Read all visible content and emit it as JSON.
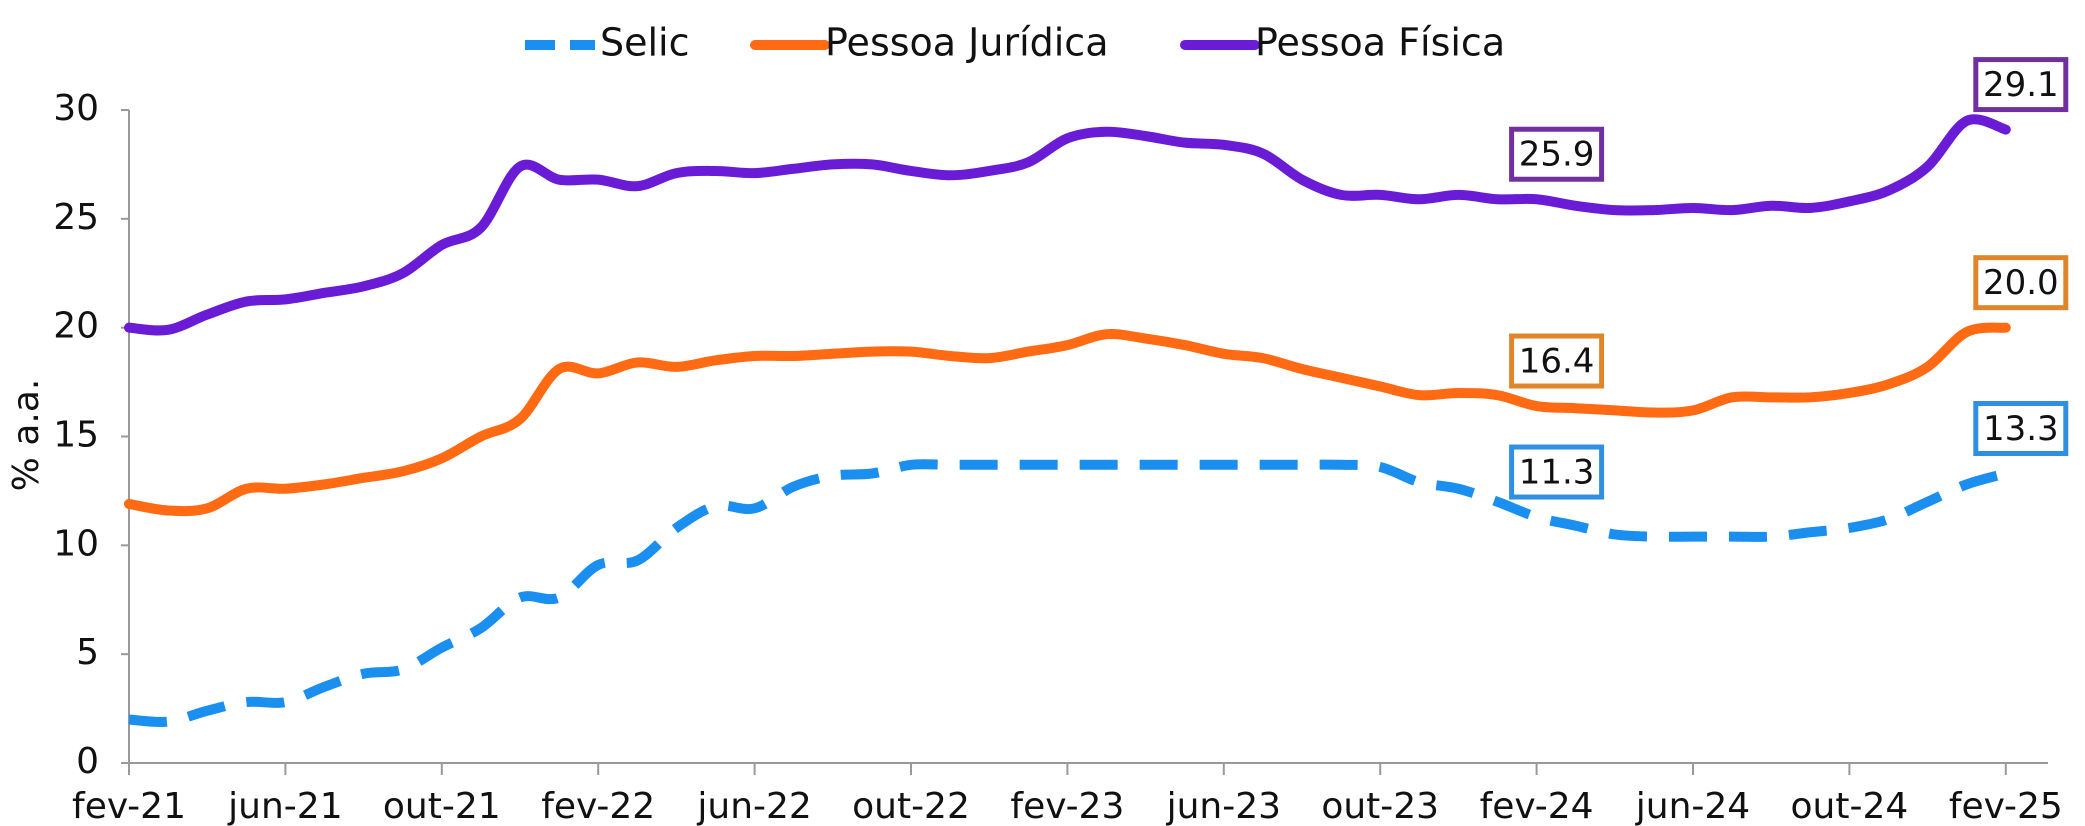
{
  "chart_data": {
    "type": "line",
    "ylabel": "% a.a.",
    "categories": [
      "fev-21",
      null,
      null,
      null,
      "jun-21",
      null,
      null,
      null,
      "out-21",
      null,
      null,
      null,
      "fev-22",
      null,
      null,
      null,
      "jun-22",
      null,
      null,
      null,
      "out-22",
      null,
      null,
      null,
      "fev-23",
      null,
      null,
      null,
      "jun-23",
      null,
      null,
      null,
      "out-23",
      null,
      null,
      null,
      "fev-24",
      null,
      null,
      null,
      "jun-24",
      null,
      null,
      null,
      "out-24",
      null,
      null,
      null,
      "fev-25"
    ],
    "series": [
      {
        "name": "Selic",
        "color": "#1a8ff0",
        "label_color": "#2f8fe0",
        "dash": true,
        "values": [
          2.0,
          1.9,
          2.4,
          2.8,
          2.8,
          3.5,
          4.1,
          4.3,
          5.3,
          6.2,
          7.6,
          7.6,
          9.1,
          9.3,
          10.8,
          11.8,
          11.7,
          12.7,
          13.2,
          13.3,
          13.7,
          13.7,
          13.7,
          13.7,
          13.7,
          13.7,
          13.7,
          13.7,
          13.7,
          13.7,
          13.7,
          13.7,
          13.6,
          12.9,
          12.6,
          12.0,
          11.3,
          10.9,
          10.5,
          10.4,
          10.4,
          10.4,
          10.4,
          10.6,
          10.8,
          11.2,
          12.0,
          12.8,
          13.3
        ],
        "value_labels": [
          null,
          null,
          null,
          null,
          null,
          null,
          null,
          null,
          null,
          null,
          null,
          null,
          null,
          null,
          null,
          null,
          null,
          null,
          null,
          null,
          null,
          null,
          null,
          null,
          null,
          null,
          null,
          null,
          null,
          null,
          null,
          null,
          null,
          null,
          null,
          null,
          "11.3",
          null,
          null,
          null,
          null,
          null,
          null,
          null,
          null,
          null,
          null,
          null,
          "13.3"
        ]
      },
      {
        "name": "Pessoa Jurídica",
        "color": "#ff6a13",
        "label_color": "#e0862a",
        "dash": false,
        "values": [
          11.9,
          11.6,
          11.7,
          12.6,
          12.6,
          12.8,
          13.1,
          13.4,
          14.0,
          15.0,
          15.8,
          18.1,
          17.9,
          18.4,
          18.2,
          18.5,
          18.7,
          18.7,
          18.8,
          18.9,
          18.9,
          18.7,
          18.6,
          18.9,
          19.2,
          19.7,
          19.5,
          19.2,
          18.8,
          18.6,
          18.1,
          17.7,
          17.3,
          16.9,
          17.0,
          16.9,
          16.4,
          16.3,
          16.2,
          16.1,
          16.2,
          16.8,
          16.8,
          16.8,
          17.0,
          17.4,
          18.2,
          19.8,
          20.0
        ],
        "value_labels": [
          null,
          null,
          null,
          null,
          null,
          null,
          null,
          null,
          null,
          null,
          null,
          null,
          null,
          null,
          null,
          null,
          null,
          null,
          null,
          null,
          null,
          null,
          null,
          null,
          null,
          null,
          null,
          null,
          null,
          null,
          null,
          null,
          null,
          null,
          null,
          null,
          "16.4",
          null,
          null,
          null,
          null,
          null,
          null,
          null,
          null,
          null,
          null,
          null,
          "20.0"
        ]
      },
      {
        "name": "Pessoa Física",
        "color": "#6a1bd6",
        "label_color": "#7030a0",
        "dash": false,
        "values": [
          20.0,
          19.9,
          20.6,
          21.2,
          21.3,
          21.6,
          21.9,
          22.5,
          23.8,
          24.6,
          27.4,
          26.8,
          26.8,
          26.5,
          27.1,
          27.2,
          27.1,
          27.3,
          27.5,
          27.5,
          27.2,
          27.0,
          27.2,
          27.6,
          28.7,
          29.0,
          28.8,
          28.5,
          28.4,
          28.0,
          26.8,
          26.1,
          26.1,
          25.9,
          26.1,
          25.9,
          25.9,
          25.6,
          25.4,
          25.4,
          25.5,
          25.4,
          25.6,
          25.5,
          25.8,
          26.3,
          27.4,
          29.5,
          29.1
        ],
        "value_labels": [
          null,
          null,
          null,
          null,
          null,
          null,
          null,
          null,
          null,
          null,
          null,
          null,
          null,
          null,
          null,
          null,
          null,
          null,
          null,
          null,
          null,
          null,
          null,
          null,
          null,
          null,
          null,
          null,
          null,
          null,
          null,
          null,
          null,
          null,
          null,
          null,
          "25.9",
          null,
          null,
          null,
          null,
          null,
          null,
          null,
          null,
          null,
          null,
          null,
          "29.1"
        ]
      }
    ],
    "ylim": [
      0,
      30
    ],
    "yticks": [
      0,
      5,
      10,
      15,
      20,
      25,
      30
    ],
    "grid": false,
    "legend": "top"
  }
}
